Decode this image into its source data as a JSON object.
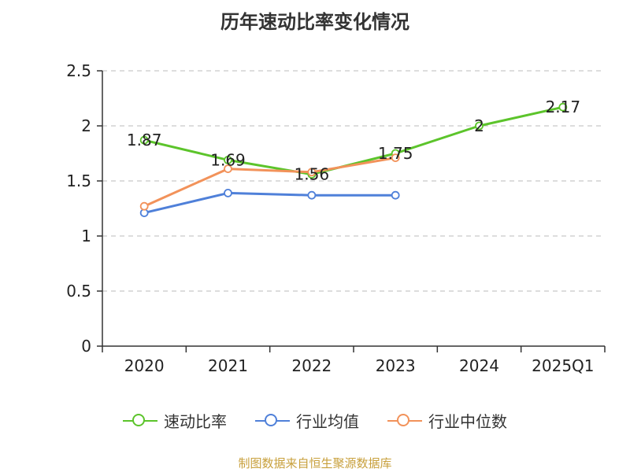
{
  "title": "历年速动比率变化情况",
  "source_note": "制图数据来自恒生聚源数据库",
  "colors": {
    "axis": "#333333",
    "grid": "#bbbbbb",
    "label": "#222222"
  },
  "chart_data": {
    "type": "line",
    "title": "历年速动比率变化情况",
    "categories": [
      "2020",
      "2021",
      "2022",
      "2023",
      "2024",
      "2025Q1"
    ],
    "ylim": [
      0,
      2.5
    ],
    "yticks": [
      "0",
      "0.5",
      "1",
      "1.5",
      "2",
      "2.5"
    ],
    "grid": true,
    "legend_position": "bottom",
    "series": [
      {
        "name": "速动比率",
        "color": "#5cc42b",
        "values": [
          1.87,
          1.69,
          1.56,
          1.75,
          2,
          2.17
        ],
        "labels": [
          "1.87",
          "1.69",
          "1.56",
          "1.75",
          "2",
          "2.17"
        ]
      },
      {
        "name": "行业均值",
        "color": "#4f80d9",
        "values": [
          1.21,
          1.39,
          1.37,
          1.37,
          null,
          null
        ]
      },
      {
        "name": "行业中位数",
        "color": "#f2925a",
        "values": [
          1.27,
          1.61,
          1.58,
          1.71,
          null,
          null
        ]
      }
    ]
  }
}
